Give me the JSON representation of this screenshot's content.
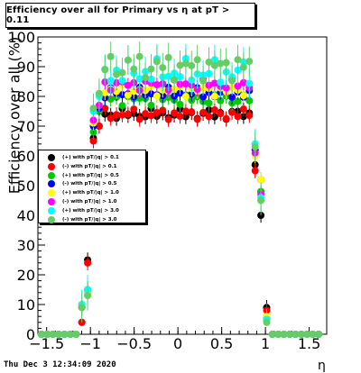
{
  "title": "Efficiency over all for Primary vs   η at pT > 0.11",
  "timestamp": "Thu Dec  3 12:34:09 2020",
  "chart_data": {
    "type": "scatter",
    "xlabel": "η",
    "ylabel": "Efficiency over all (%)",
    "xlim": [
      -1.6,
      1.7
    ],
    "ylim": [
      0,
      100
    ],
    "xticks": [
      "−1.5",
      "−1",
      "−0.5",
      "0",
      "0.5",
      "1",
      "1.5"
    ],
    "xtick_values": [
      -1.5,
      -1.0,
      -0.5,
      0.0,
      0.5,
      1.0,
      1.5
    ],
    "yticks": [
      "0",
      "10",
      "20",
      "30",
      "40",
      "50",
      "60",
      "70",
      "80",
      "90",
      "100"
    ],
    "legend_position": "left-middle",
    "series": [
      {
        "name": "(+) with pT/|q| > 0.1",
        "color": "#000000",
        "plateau": 74,
        "edge": [
          25,
          4,
          0
        ],
        "rise": [
          66,
          70
        ],
        "fall": [
          57,
          40,
          27,
          9,
          0
        ]
      },
      {
        "name": "(-) with pT/|q| > 0.1",
        "color": "#ff0000",
        "plateau": 74,
        "edge": [
          24,
          4,
          0
        ],
        "rise": [
          65,
          70
        ],
        "fall": [
          55,
          48,
          26,
          8,
          0
        ]
      },
      {
        "name": "(+) with pT/|q| > 0.5",
        "color": "#00cc00",
        "plateau": 79,
        "edge": [
          15,
          10,
          0
        ],
        "rise": [
          68,
          75
        ],
        "fall": [
          64,
          48,
          22,
          6,
          0
        ]
      },
      {
        "name": "(-) with pT/|q| > 0.5",
        "color": "#0000ff",
        "plateau": 81,
        "edge": [
          14,
          9,
          0
        ],
        "rise": [
          70,
          76
        ],
        "fall": [
          62,
          52,
          20,
          5,
          0
        ]
      },
      {
        "name": "(+) with pT/|q| > 1.0",
        "color": "#ffff00",
        "plateau": 82,
        "edge": [
          14,
          9,
          0
        ],
        "rise": [
          71,
          77
        ],
        "fall": [
          60,
          52,
          21,
          6,
          0
        ]
      },
      {
        "name": "(-) with pT/|q| > 1.0",
        "color": "#ff00ff",
        "plateau": 84,
        "edge": [
          15,
          9,
          0
        ],
        "rise": [
          72,
          77
        ],
        "fall": [
          61,
          47,
          19,
          5,
          0
        ]
      },
      {
        "name": "(+) with pT/|q| > 3.0",
        "color": "#00ffff",
        "plateau": 88,
        "edge": [
          15,
          10,
          0
        ],
        "rise": [
          75,
          80
        ],
        "fall": [
          64,
          46,
          18,
          5,
          0
        ]
      },
      {
        "name": "(-) with pT/|q| > 3.0",
        "color": "#66cc66",
        "plateau": 90,
        "edge": [
          13,
          9,
          0
        ],
        "rise": [
          76,
          81
        ],
        "fall": [
          63,
          45,
          18,
          4,
          0
        ]
      }
    ]
  }
}
